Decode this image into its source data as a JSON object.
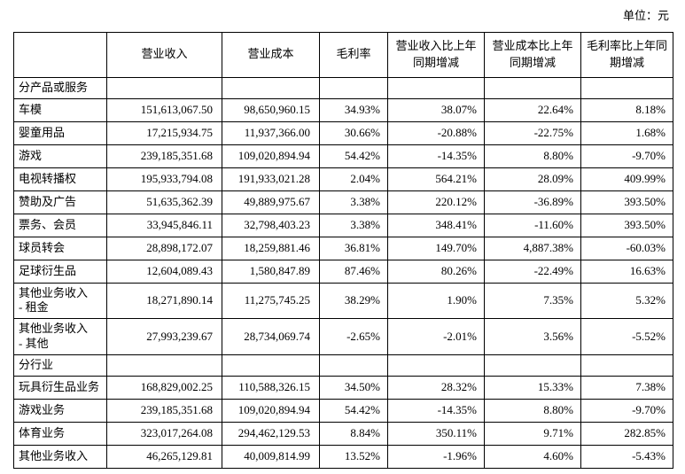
{
  "unit_label": "单位：元",
  "table": {
    "headers": [
      "",
      "营业收入",
      "营业成本",
      "毛利率",
      "营业收入比上年同期增减",
      "营业成本比上年同期增减",
      "毛利率比上年同期增减"
    ],
    "column_names": [
      "row-label",
      "cell-operating-revenue",
      "cell-operating-cost",
      "cell-gross-margin",
      "cell-revenue-yoy-change",
      "cell-cost-yoy-change",
      "cell-margin-yoy-change"
    ],
    "rows": [
      {
        "type": "section",
        "label": "分产品或服务"
      },
      {
        "type": "data",
        "label": "车模",
        "cells": [
          "151,613,067.50",
          "98,650,960.15",
          "34.93%",
          "38.07%",
          "22.64%",
          "8.18%"
        ]
      },
      {
        "type": "data",
        "label": "婴童用品",
        "cells": [
          "17,215,934.75",
          "11,937,366.00",
          "30.66%",
          "-20.88%",
          "-22.75%",
          "1.68%"
        ]
      },
      {
        "type": "data",
        "label": "游戏",
        "cells": [
          "239,185,351.68",
          "109,020,894.94",
          "54.42%",
          "-14.35%",
          "8.80%",
          "-9.70%"
        ]
      },
      {
        "type": "data",
        "label": "电视转播权",
        "cells": [
          "195,933,794.08",
          "191,933,021.28",
          "2.04%",
          "564.21%",
          "28.09%",
          "409.99%"
        ]
      },
      {
        "type": "data",
        "label": "赞助及广告",
        "cells": [
          "51,635,362.39",
          "49,889,975.67",
          "3.38%",
          "220.12%",
          "-36.89%",
          "393.50%"
        ]
      },
      {
        "type": "data",
        "label": "票务、会员",
        "cells": [
          "33,945,846.11",
          "32,798,403.23",
          "3.38%",
          "348.41%",
          "-11.60%",
          "393.50%"
        ]
      },
      {
        "type": "data",
        "label": "球员转会",
        "cells": [
          "28,898,172.07",
          "18,259,881.46",
          "36.81%",
          "149.70%",
          "4,887.38%",
          "-60.03%"
        ]
      },
      {
        "type": "data",
        "label": "足球衍生品",
        "cells": [
          "12,604,089.43",
          "1,580,847.89",
          "87.46%",
          "80.26%",
          "-22.49%",
          "16.63%"
        ]
      },
      {
        "type": "data",
        "label": "其他业务收入\n- 租金",
        "cells": [
          "18,271,890.14",
          "11,275,745.25",
          "38.29%",
          "1.90%",
          "7.35%",
          "5.32%"
        ]
      },
      {
        "type": "data",
        "label": "其他业务收入\n- 其他",
        "cells": [
          "27,993,239.67",
          "28,734,069.74",
          "-2.65%",
          "-2.01%",
          "3.56%",
          "-5.52%"
        ]
      },
      {
        "type": "section",
        "label": "分行业"
      },
      {
        "type": "data",
        "label": "玩具衍生品业务",
        "cells": [
          "168,829,002.25",
          "110,588,326.15",
          "34.50%",
          "28.32%",
          "15.33%",
          "7.38%"
        ]
      },
      {
        "type": "data",
        "label": "游戏业务",
        "cells": [
          "239,185,351.68",
          "109,020,894.94",
          "54.42%",
          "-14.35%",
          "8.80%",
          "-9.70%"
        ]
      },
      {
        "type": "data",
        "label": "体育业务",
        "cells": [
          "323,017,264.08",
          "294,462,129.53",
          "8.84%",
          "350.11%",
          "9.71%",
          "282.85%"
        ]
      },
      {
        "type": "data",
        "label": "其他业务收入",
        "cells": [
          "46,265,129.81",
          "40,009,814.99",
          "13.52%",
          "-1.96%",
          "4.60%",
          "-5.43%"
        ]
      }
    ]
  }
}
